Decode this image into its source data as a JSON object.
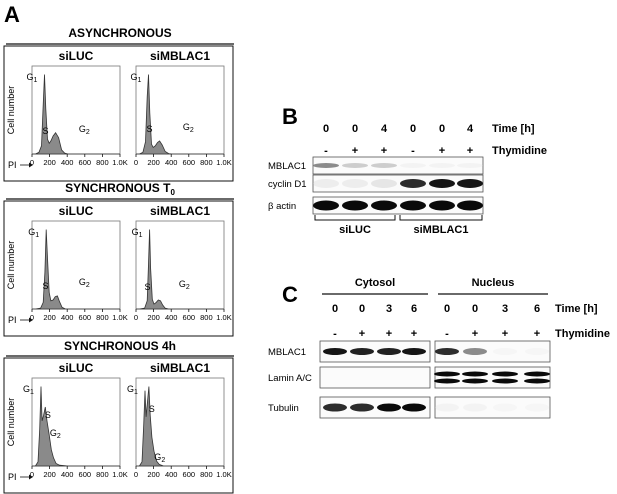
{
  "panel_a": {
    "letter": "A",
    "ylabel": "Cell number",
    "xlabel": "PI",
    "ticks": [
      "0",
      "200",
      "400",
      "600",
      "800",
      "1.0K"
    ],
    "sections": [
      {
        "title": "ASYNCHRONOUS",
        "title_sub": "",
        "plots": [
          {
            "title": "siLUC",
            "peaks": [
              {
                "label": "G",
                "sub": "1"
              },
              {
                "label": "S",
                "sub": ""
              },
              {
                "label": "G",
                "sub": "2"
              }
            ],
            "profile": [
              [
                0,
                0
              ],
              [
                40,
                0
              ],
              [
                80,
                0.02
              ],
              [
                110,
                0.1
              ],
              [
                130,
                0.6
              ],
              [
                145,
                0.97
              ],
              [
                160,
                0.55
              ],
              [
                180,
                0.18
              ],
              [
                200,
                0.13
              ],
              [
                220,
                0.16
              ],
              [
                245,
                0.22
              ],
              [
                275,
                0.26
              ],
              [
                310,
                0.2
              ],
              [
                345,
                0.05
              ],
              [
                380,
                0.01
              ],
              [
                420,
                0
              ]
            ]
          },
          {
            "title": "siMBLAC1",
            "peaks": [
              {
                "label": "G",
                "sub": "1"
              },
              {
                "label": "S",
                "sub": ""
              },
              {
                "label": "G",
                "sub": "2"
              }
            ],
            "profile": [
              [
                0,
                0
              ],
              [
                40,
                0
              ],
              [
                80,
                0.02
              ],
              [
                110,
                0.15
              ],
              [
                130,
                0.7
              ],
              [
                145,
                0.97
              ],
              [
                160,
                0.5
              ],
              [
                180,
                0.12
              ],
              [
                200,
                0.08
              ],
              [
                225,
                0.1
              ],
              [
                250,
                0.14
              ],
              [
                275,
                0.16
              ],
              [
                305,
                0.11
              ],
              [
                340,
                0.03
              ],
              [
                380,
                0.005
              ],
              [
                420,
                0
              ]
            ]
          }
        ]
      },
      {
        "title": "SYNCHRONOUS T",
        "title_sub": "0",
        "plots": [
          {
            "title": "siLUC",
            "peaks": [
              {
                "label": "G",
                "sub": "1"
              },
              {
                "label": "S",
                "sub": ""
              },
              {
                "label": "G",
                "sub": "2"
              }
            ],
            "profile": [
              [
                0,
                0
              ],
              [
                40,
                0
              ],
              [
                100,
                0.01
              ],
              [
                130,
                0.08
              ],
              [
                150,
                0.45
              ],
              [
                165,
                0.97
              ],
              [
                180,
                0.62
              ],
              [
                200,
                0.2
              ],
              [
                220,
                0.1
              ],
              [
                245,
                0.11
              ],
              [
                270,
                0.15
              ],
              [
                295,
                0.16
              ],
              [
                320,
                0.09
              ],
              [
                350,
                0.02
              ],
              [
                390,
                0
              ],
              [
                420,
                0
              ]
            ]
          },
          {
            "title": "siMBLAC1",
            "peaks": [
              {
                "label": "G",
                "sub": "1"
              },
              {
                "label": "S",
                "sub": ""
              },
              {
                "label": "G",
                "sub": "2"
              }
            ],
            "profile": [
              [
                0,
                0
              ],
              [
                40,
                0
              ],
              [
                100,
                0.01
              ],
              [
                130,
                0.1
              ],
              [
                145,
                0.55
              ],
              [
                158,
                0.97
              ],
              [
                170,
                0.5
              ],
              [
                190,
                0.12
              ],
              [
                210,
                0.06
              ],
              [
                235,
                0.08
              ],
              [
                260,
                0.11
              ],
              [
                285,
                0.1
              ],
              [
                310,
                0.05
              ],
              [
                340,
                0.01
              ],
              [
                380,
                0
              ],
              [
                420,
                0
              ]
            ]
          }
        ]
      },
      {
        "title": "SYNCHRONOUS 4h",
        "title_sub": "",
        "plots": [
          {
            "title": "siLUC",
            "peaks": [
              {
                "label": "G",
                "sub": "1"
              },
              {
                "label": "S",
                "sub": ""
              },
              {
                "label": "G",
                "sub": "2"
              }
            ],
            "profile": [
              [
                0,
                0
              ],
              [
                40,
                0
              ],
              [
                70,
                0.05
              ],
              [
                90,
                0.45
              ],
              [
                105,
                0.97
              ],
              [
                118,
                0.55
              ],
              [
                135,
                0.62
              ],
              [
                155,
                0.72
              ],
              [
                175,
                0.55
              ],
              [
                200,
                0.38
              ],
              [
                225,
                0.2
              ],
              [
                250,
                0.1
              ],
              [
                280,
                0.03
              ],
              [
                320,
                0.01
              ],
              [
                420,
                0
              ]
            ]
          },
          {
            "title": "siMBLAC1",
            "peaks": [
              {
                "label": "G",
                "sub": "1"
              },
              {
                "label": "S",
                "sub": ""
              },
              {
                "label": "G",
                "sub": "2"
              }
            ],
            "profile": [
              [
                0,
                0
              ],
              [
                40,
                0
              ],
              [
                70,
                0.05
              ],
              [
                90,
                0.5
              ],
              [
                105,
                0.92
              ],
              [
                118,
                0.6
              ],
              [
                135,
                0.8
              ],
              [
                150,
                0.97
              ],
              [
                165,
                0.62
              ],
              [
                185,
                0.35
              ],
              [
                210,
                0.18
              ],
              [
                240,
                0.06
              ],
              [
                270,
                0.02
              ],
              [
                320,
                0
              ],
              [
                420,
                0
              ]
            ]
          }
        ]
      }
    ]
  },
  "panel_b": {
    "letter": "B",
    "time_values": [
      "0",
      "0",
      "4",
      "0",
      "0",
      "4"
    ],
    "time_label": "Time [h]",
    "thymidine_values": [
      "-",
      "+",
      "+",
      "-",
      "+",
      "+"
    ],
    "thymidine_label": "Thymidine",
    "rows": [
      {
        "label": "MBLAC1",
        "intensities": [
          0.55,
          0.3,
          0.3,
          0.05,
          0.05,
          0.05
        ]
      },
      {
        "label": "cyclin D1",
        "intensities": [
          0.1,
          0.1,
          0.15,
          0.85,
          0.95,
          0.95
        ]
      },
      {
        "label": "β actin",
        "intensities": [
          1,
          1,
          1,
          1,
          1,
          1
        ]
      }
    ],
    "groups": [
      "siLUC",
      "siMBLAC1"
    ]
  },
  "panel_c": {
    "letter": "C",
    "groups": [
      "Cytosol",
      "Nucleus"
    ],
    "time_values": [
      "0",
      "0",
      "3",
      "6",
      "0",
      "0",
      "3",
      "6"
    ],
    "time_label": "Time [h]",
    "thymidine_values": [
      "-",
      "+",
      "+",
      "+",
      "-",
      "+",
      "+",
      "+"
    ],
    "thymidine_label": "Thymidine",
    "rows": [
      {
        "label": "MBLAC1",
        "intensities": [
          0.95,
          0.9,
          0.9,
          0.95,
          0.85,
          0.55,
          0.02,
          0.02
        ]
      },
      {
        "label": "Lamin A/C",
        "intensities": [
          0,
          0,
          0,
          0,
          1,
          1,
          1,
          1
        ]
      },
      {
        "label": "Tubulin",
        "intensities": [
          0.85,
          0.85,
          1,
          1,
          0.05,
          0.05,
          0.02,
          0.02
        ]
      }
    ]
  }
}
